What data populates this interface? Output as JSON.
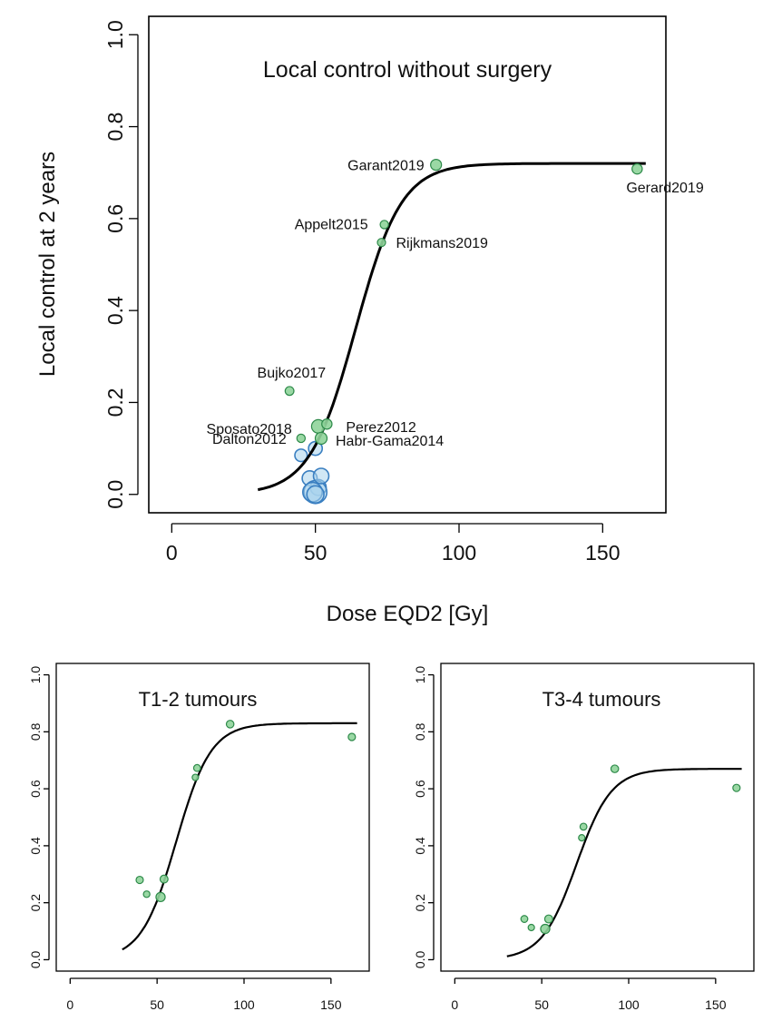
{
  "chart_data": [
    {
      "type": "scatter",
      "title": "Local control without surgery",
      "xlabel": "Dose EQD2 [Gy]",
      "ylabel": "Local control at 2 years",
      "xlim": [
        -8,
        172
      ],
      "ylim": [
        -0.04,
        1.04
      ],
      "xticks": [
        0,
        50,
        100,
        150
      ],
      "yticks": [
        0.0,
        0.2,
        0.4,
        0.6,
        0.8,
        1.0
      ],
      "xtick_labels": [
        "0",
        "50",
        "100",
        "150"
      ],
      "ytick_labels": [
        "0.0",
        "0.2",
        "0.4",
        "0.6",
        "0.8",
        "1.0"
      ],
      "curve": {
        "type": "logistic",
        "min": 0.0,
        "max": 0.72,
        "midpoint": 64,
        "slope": 8,
        "x_range": [
          30,
          165
        ]
      },
      "points": [
        {
          "label": "Garant2019",
          "x": 92,
          "y": 0.717,
          "weight": 1.7,
          "group": "labeled"
        },
        {
          "label": "Gerard2019",
          "x": 162,
          "y": 0.708,
          "weight": 1.5,
          "group": "labeled"
        },
        {
          "label": "Appelt2015",
          "x": 74,
          "y": 0.587,
          "weight": 1.0,
          "group": "labeled"
        },
        {
          "label": "Rijkmans2019",
          "x": 73,
          "y": 0.548,
          "weight": 0.7,
          "group": "labeled"
        },
        {
          "label": "Bujko2017",
          "x": 41,
          "y": 0.225,
          "weight": 1.1,
          "group": "labeled"
        },
        {
          "label": "Sposato2018",
          "x": 51,
          "y": 0.148,
          "weight": 2.6,
          "group": "labeled"
        },
        {
          "label": "Perez2012",
          "x": 54,
          "y": 0.153,
          "weight": 1.5,
          "group": "labeled"
        },
        {
          "label": "Dalton2012",
          "x": 45,
          "y": 0.122,
          "weight": 1.0,
          "group": "labeled"
        },
        {
          "label": "Habr-Gama2014",
          "x": 52,
          "y": 0.122,
          "weight": 2.0,
          "group": "labeled"
        },
        {
          "label": "",
          "x": 45,
          "y": 0.085,
          "weight": 2.2,
          "group": "unlabeled"
        },
        {
          "label": "",
          "x": 50,
          "y": 0.1,
          "weight": 2.7,
          "group": "unlabeled"
        },
        {
          "label": "",
          "x": 48,
          "y": 0.035,
          "weight": 3.2,
          "group": "unlabeled"
        },
        {
          "label": "",
          "x": 51,
          "y": 0.015,
          "weight": 3.6,
          "group": "unlabeled"
        },
        {
          "label": "",
          "x": 50,
          "y": 0.005,
          "weight": 7.5,
          "group": "unlabeled"
        },
        {
          "label": "",
          "x": 49,
          "y": 0.005,
          "weight": 5.4,
          "group": "unlabeled"
        },
        {
          "label": "",
          "x": 50,
          "y": 0.0,
          "weight": 4.2,
          "group": "unlabeled"
        },
        {
          "label": "",
          "x": 52,
          "y": 0.04,
          "weight": 3.4,
          "group": "unlabeled"
        }
      ],
      "colors": {
        "labeled_fill": "#8fd49a",
        "labeled_stroke": "#2e8a4a",
        "unlabeled_fill": "#a9d3ec",
        "unlabeled_stroke": "#3a7fc1",
        "curve": "#000000"
      }
    },
    {
      "type": "scatter",
      "title": "T1-2 tumours",
      "xlim": [
        -8,
        172
      ],
      "ylim": [
        -0.04,
        1.04
      ],
      "xticks": [
        0,
        50,
        100,
        150
      ],
      "yticks": [
        0.0,
        0.2,
        0.4,
        0.6,
        0.8,
        1.0
      ],
      "xtick_labels": [
        "0",
        "50",
        "100",
        "150"
      ],
      "ytick_labels": [
        "0.0",
        "0.2",
        "0.4",
        "0.6",
        "0.8",
        "1.0"
      ],
      "curve": {
        "type": "logistic",
        "min": 0.0,
        "max": 0.83,
        "midpoint": 61,
        "slope": 10,
        "x_range": [
          30,
          165
        ]
      },
      "points": [
        {
          "x": 40,
          "y": 0.28,
          "weight": 1.0
        },
        {
          "x": 44,
          "y": 0.23,
          "weight": 0.8
        },
        {
          "x": 52,
          "y": 0.22,
          "weight": 1.6
        },
        {
          "x": 54,
          "y": 0.283,
          "weight": 1.2
        },
        {
          "x": 73,
          "y": 0.673,
          "weight": 0.9
        },
        {
          "x": 72,
          "y": 0.64,
          "weight": 0.7
        },
        {
          "x": 92,
          "y": 0.827,
          "weight": 1.1
        },
        {
          "x": 162,
          "y": 0.782,
          "weight": 1.0
        }
      ],
      "colors": {
        "fill": "#8fd49a",
        "stroke": "#2e8a4a",
        "curve": "#000000"
      }
    },
    {
      "type": "scatter",
      "title": "T3-4 tumours",
      "xlim": [
        -8,
        172
      ],
      "ylim": [
        -0.04,
        1.04
      ],
      "xticks": [
        0,
        50,
        100,
        150
      ],
      "yticks": [
        0.0,
        0.2,
        0.4,
        0.6,
        0.8,
        1.0
      ],
      "xtick_labels": [
        "0",
        "50",
        "100",
        "150"
      ],
      "ytick_labels": [
        "0.0",
        "0.2",
        "0.4",
        "0.6",
        "0.8",
        "1.0"
      ],
      "curve": {
        "type": "logistic",
        "min": 0.0,
        "max": 0.67,
        "midpoint": 70,
        "slope": 10,
        "x_range": [
          30,
          165
        ]
      },
      "points": [
        {
          "x": 40,
          "y": 0.143,
          "weight": 0.9
        },
        {
          "x": 44,
          "y": 0.113,
          "weight": 0.7
        },
        {
          "x": 52,
          "y": 0.108,
          "weight": 1.6
        },
        {
          "x": 54,
          "y": 0.143,
          "weight": 1.2
        },
        {
          "x": 74,
          "y": 0.467,
          "weight": 0.9
        },
        {
          "x": 73,
          "y": 0.428,
          "weight": 0.7
        },
        {
          "x": 92,
          "y": 0.67,
          "weight": 1.1
        },
        {
          "x": 162,
          "y": 0.603,
          "weight": 1.0
        }
      ],
      "colors": {
        "fill": "#8fd49a",
        "stroke": "#2e8a4a",
        "curve": "#000000"
      }
    }
  ]
}
